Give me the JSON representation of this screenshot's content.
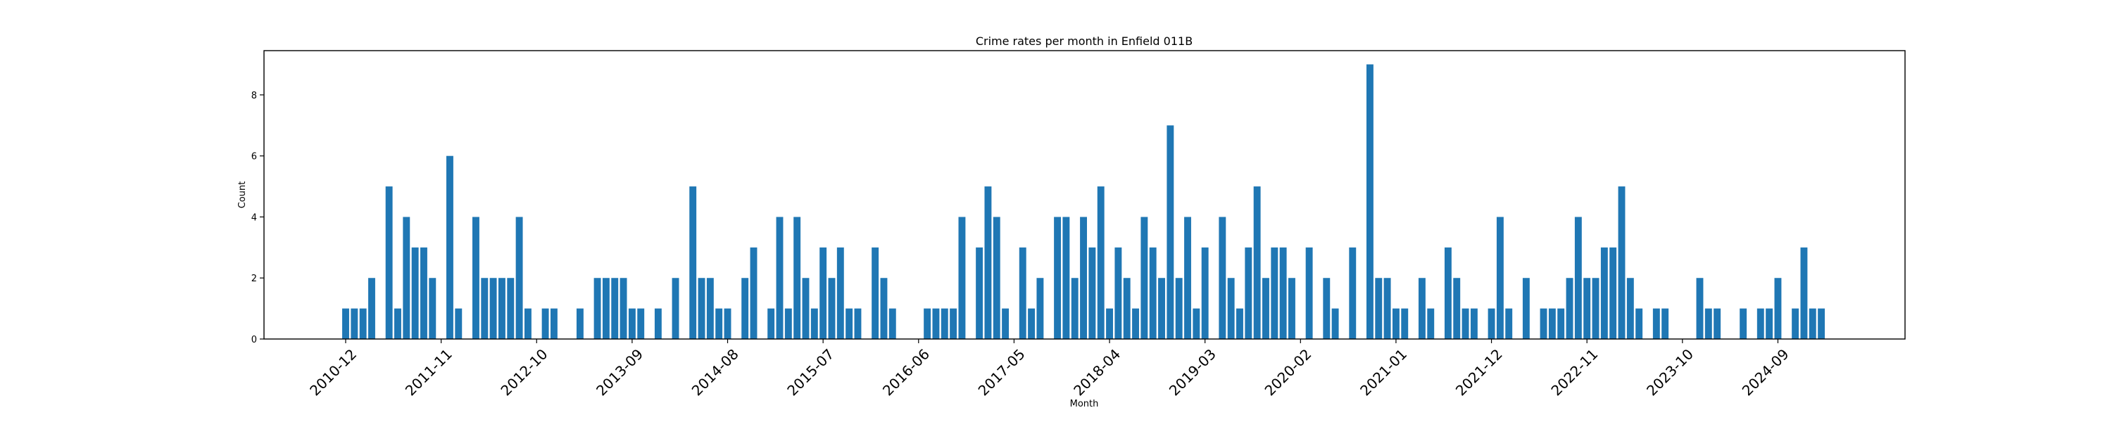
{
  "chart_data": {
    "type": "bar",
    "title": "Crime rates per month in Enfield 011B",
    "xlabel": "Month",
    "ylabel": "Count",
    "ylim": [
      0,
      9.45
    ],
    "yticks": [
      0,
      2,
      4,
      6,
      8
    ],
    "grid": false,
    "legend": "none",
    "bar_color": "#1f77b4",
    "x_tick_labels": [
      "2010-12",
      "2011-11",
      "2012-10",
      "2013-09",
      "2014-08",
      "2015-07",
      "2016-06",
      "2017-05",
      "2018-04",
      "2019-03",
      "2020-02",
      "2021-01",
      "2021-12",
      "2022-11",
      "2023-10",
      "2024-09"
    ],
    "bars": [
      {
        "x": "2010-12",
        "y": 1
      },
      {
        "x": "2011-01",
        "y": 1
      },
      {
        "x": "2011-02",
        "y": 1
      },
      {
        "x": "2011-03",
        "y": 2
      },
      {
        "x": "2011-05",
        "y": 5
      },
      {
        "x": "2011-06",
        "y": 1
      },
      {
        "x": "2011-07",
        "y": 4
      },
      {
        "x": "2011-08",
        "y": 3
      },
      {
        "x": "2011-09",
        "y": 3
      },
      {
        "x": "2011-10",
        "y": 2
      },
      {
        "x": "2011-12",
        "y": 6
      },
      {
        "x": "2012-01",
        "y": 1
      },
      {
        "x": "2012-03",
        "y": 4
      },
      {
        "x": "2012-04",
        "y": 2
      },
      {
        "x": "2012-05",
        "y": 2
      },
      {
        "x": "2012-06",
        "y": 2
      },
      {
        "x": "2012-07",
        "y": 2
      },
      {
        "x": "2012-08",
        "y": 4
      },
      {
        "x": "2012-09",
        "y": 1
      },
      {
        "x": "2012-11",
        "y": 1
      },
      {
        "x": "2012-12",
        "y": 1
      },
      {
        "x": "2013-03",
        "y": 1
      },
      {
        "x": "2013-05",
        "y": 2
      },
      {
        "x": "2013-06",
        "y": 2
      },
      {
        "x": "2013-07",
        "y": 2
      },
      {
        "x": "2013-08",
        "y": 2
      },
      {
        "x": "2013-09",
        "y": 1
      },
      {
        "x": "2013-10",
        "y": 1
      },
      {
        "x": "2013-12",
        "y": 1
      },
      {
        "x": "2014-02",
        "y": 2
      },
      {
        "x": "2014-04",
        "y": 5
      },
      {
        "x": "2014-05",
        "y": 2
      },
      {
        "x": "2014-06",
        "y": 2
      },
      {
        "x": "2014-07",
        "y": 1
      },
      {
        "x": "2014-08",
        "y": 1
      },
      {
        "x": "2014-10",
        "y": 2
      },
      {
        "x": "2014-11",
        "y": 3
      },
      {
        "x": "2015-01",
        "y": 1
      },
      {
        "x": "2015-02",
        "y": 4
      },
      {
        "x": "2015-03",
        "y": 1
      },
      {
        "x": "2015-04",
        "y": 4
      },
      {
        "x": "2015-05",
        "y": 2
      },
      {
        "x": "2015-06",
        "y": 1
      },
      {
        "x": "2015-07",
        "y": 3
      },
      {
        "x": "2015-08",
        "y": 2
      },
      {
        "x": "2015-09",
        "y": 3
      },
      {
        "x": "2015-10",
        "y": 1
      },
      {
        "x": "2015-11",
        "y": 1
      },
      {
        "x": "2016-01",
        "y": 3
      },
      {
        "x": "2016-02",
        "y": 2
      },
      {
        "x": "2016-03",
        "y": 1
      },
      {
        "x": "2016-07",
        "y": 1
      },
      {
        "x": "2016-08",
        "y": 1
      },
      {
        "x": "2016-09",
        "y": 1
      },
      {
        "x": "2016-10",
        "y": 1
      },
      {
        "x": "2016-11",
        "y": 4
      },
      {
        "x": "2017-01",
        "y": 3
      },
      {
        "x": "2017-02",
        "y": 5
      },
      {
        "x": "2017-03",
        "y": 4
      },
      {
        "x": "2017-04",
        "y": 1
      },
      {
        "x": "2017-06",
        "y": 3
      },
      {
        "x": "2017-07",
        "y": 1
      },
      {
        "x": "2017-08",
        "y": 2
      },
      {
        "x": "2017-10",
        "y": 4
      },
      {
        "x": "2017-11",
        "y": 4
      },
      {
        "x": "2017-12",
        "y": 2
      },
      {
        "x": "2018-01",
        "y": 4
      },
      {
        "x": "2018-02",
        "y": 3
      },
      {
        "x": "2018-03",
        "y": 5
      },
      {
        "x": "2018-04",
        "y": 1
      },
      {
        "x": "2018-05",
        "y": 3
      },
      {
        "x": "2018-06",
        "y": 2
      },
      {
        "x": "2018-07",
        "y": 1
      },
      {
        "x": "2018-08",
        "y": 4
      },
      {
        "x": "2018-09",
        "y": 3
      },
      {
        "x": "2018-10",
        "y": 2
      },
      {
        "x": "2018-11",
        "y": 7
      },
      {
        "x": "2018-12",
        "y": 2
      },
      {
        "x": "2019-01",
        "y": 4
      },
      {
        "x": "2019-02",
        "y": 1
      },
      {
        "x": "2019-03",
        "y": 3
      },
      {
        "x": "2019-05",
        "y": 4
      },
      {
        "x": "2019-06",
        "y": 2
      },
      {
        "x": "2019-07",
        "y": 1
      },
      {
        "x": "2019-08",
        "y": 3
      },
      {
        "x": "2019-09",
        "y": 5
      },
      {
        "x": "2019-10",
        "y": 2
      },
      {
        "x": "2019-11",
        "y": 3
      },
      {
        "x": "2019-12",
        "y": 3
      },
      {
        "x": "2020-01",
        "y": 2
      },
      {
        "x": "2020-03",
        "y": 3
      },
      {
        "x": "2020-05",
        "y": 2
      },
      {
        "x": "2020-06",
        "y": 1
      },
      {
        "x": "2020-08",
        "y": 3
      },
      {
        "x": "2020-10",
        "y": 9
      },
      {
        "x": "2020-11",
        "y": 2
      },
      {
        "x": "2020-12",
        "y": 2
      },
      {
        "x": "2021-01",
        "y": 1
      },
      {
        "x": "2021-02",
        "y": 1
      },
      {
        "x": "2021-04",
        "y": 2
      },
      {
        "x": "2021-05",
        "y": 1
      },
      {
        "x": "2021-07",
        "y": 3
      },
      {
        "x": "2021-08",
        "y": 2
      },
      {
        "x": "2021-09",
        "y": 1
      },
      {
        "x": "2021-10",
        "y": 1
      },
      {
        "x": "2021-12",
        "y": 1
      },
      {
        "x": "2022-01",
        "y": 4
      },
      {
        "x": "2022-02",
        "y": 1
      },
      {
        "x": "2022-04",
        "y": 2
      },
      {
        "x": "2022-06",
        "y": 1
      },
      {
        "x": "2022-07",
        "y": 1
      },
      {
        "x": "2022-08",
        "y": 1
      },
      {
        "x": "2022-09",
        "y": 2
      },
      {
        "x": "2022-10",
        "y": 4
      },
      {
        "x": "2022-11",
        "y": 2
      },
      {
        "x": "2022-12",
        "y": 2
      },
      {
        "x": "2023-01",
        "y": 3
      },
      {
        "x": "2023-02",
        "y": 3
      },
      {
        "x": "2023-03",
        "y": 5
      },
      {
        "x": "2023-04",
        "y": 2
      },
      {
        "x": "2023-05",
        "y": 1
      },
      {
        "x": "2023-07",
        "y": 1
      },
      {
        "x": "2023-08",
        "y": 1
      },
      {
        "x": "2023-12",
        "y": 2
      },
      {
        "x": "2024-01",
        "y": 1
      },
      {
        "x": "2024-02",
        "y": 1
      },
      {
        "x": "2024-05",
        "y": 1
      },
      {
        "x": "2024-07",
        "y": 1
      },
      {
        "x": "2024-08",
        "y": 1
      },
      {
        "x": "2024-09",
        "y": 2
      },
      {
        "x": "2024-11",
        "y": 1
      },
      {
        "x": "2024-12",
        "y": 3
      },
      {
        "x": "2025-01",
        "y": 1
      },
      {
        "x": "2025-02",
        "y": 1
      }
    ]
  }
}
